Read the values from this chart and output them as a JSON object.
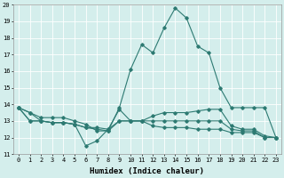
{
  "xlabel": "Humidex (Indice chaleur)",
  "x": [
    0,
    1,
    2,
    3,
    4,
    5,
    6,
    7,
    8,
    9,
    10,
    11,
    12,
    13,
    14,
    15,
    16,
    17,
    18,
    19,
    20,
    21,
    22,
    23
  ],
  "line_main": [
    13.8,
    13.5,
    13.2,
    13.2,
    13.2,
    13.0,
    12.8,
    12.4,
    12.4,
    13.8,
    16.1,
    17.6,
    17.1,
    18.6,
    19.8,
    19.2,
    17.5,
    17.1,
    15.0,
    13.8,
    13.8,
    13.8,
    13.8,
    12.0
  ],
  "line_a": [
    13.8,
    13.5,
    13.0,
    12.9,
    12.9,
    12.8,
    11.5,
    11.8,
    12.5,
    13.7,
    13.0,
    13.0,
    13.3,
    13.5,
    13.5,
    13.5,
    13.6,
    13.7,
    13.7,
    12.7,
    12.5,
    12.5,
    12.1,
    12.0
  ],
  "line_b": [
    13.8,
    13.0,
    13.0,
    12.9,
    12.9,
    12.8,
    12.6,
    12.6,
    12.5,
    13.0,
    13.0,
    13.0,
    13.0,
    13.0,
    13.0,
    13.0,
    13.0,
    13.0,
    13.0,
    12.5,
    12.4,
    12.4,
    12.0,
    12.0
  ],
  "line_c": [
    13.8,
    13.0,
    13.0,
    12.9,
    12.9,
    12.8,
    12.6,
    12.5,
    12.4,
    13.0,
    13.0,
    13.0,
    12.7,
    12.6,
    12.6,
    12.6,
    12.5,
    12.5,
    12.5,
    12.3,
    12.3,
    12.3,
    12.0,
    12.0
  ],
  "ylim": [
    11,
    20
  ],
  "xlim_min": -0.5,
  "xlim_max": 23.5,
  "yticks": [
    11,
    12,
    13,
    14,
    15,
    16,
    17,
    18,
    19,
    20
  ],
  "xticks": [
    0,
    1,
    2,
    3,
    4,
    5,
    6,
    7,
    8,
    9,
    10,
    11,
    12,
    13,
    14,
    15,
    16,
    17,
    18,
    19,
    20,
    21,
    22,
    23
  ],
  "line_color": "#2d7a72",
  "bg_color": "#d4eeec",
  "grid_color": "#ffffff",
  "tick_fontsize": 5.0,
  "xlabel_fontsize": 6.5,
  "lw": 0.8,
  "ms": 1.8
}
